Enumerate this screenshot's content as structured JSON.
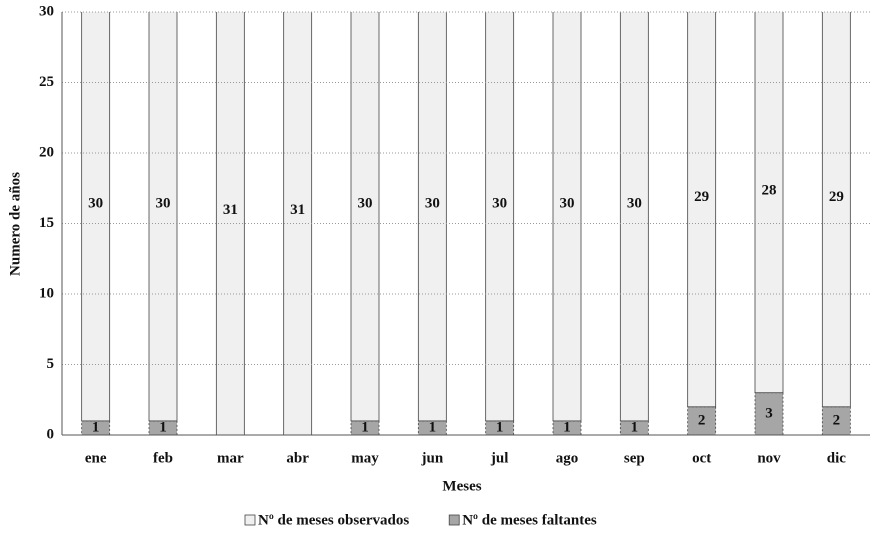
{
  "chart_data": {
    "type": "stacked_bar",
    "x_label": "Meses",
    "y_label": "Numero de años",
    "categories": [
      "ene",
      "feb",
      "mar",
      "abr",
      "may",
      "jun",
      "jul",
      "ago",
      "sep",
      "oct",
      "nov",
      "dic"
    ],
    "series": [
      {
        "name": "Nº de meses faltantes",
        "color": "#a6a6a6",
        "values": [
          1,
          1,
          0,
          0,
          1,
          1,
          1,
          1,
          1,
          2,
          3,
          2
        ]
      },
      {
        "name": "Nº de meses observados",
        "color": "#f0f0f0",
        "values": [
          30,
          30,
          31,
          31,
          30,
          30,
          30,
          30,
          30,
          29,
          28,
          29
        ]
      }
    ],
    "legend_order": [
      1,
      0
    ],
    "ylim": [
      0,
      30
    ],
    "yticks": [
      0,
      5,
      10,
      15,
      20,
      25,
      30
    ],
    "grid": true,
    "legend": "bottom"
  }
}
